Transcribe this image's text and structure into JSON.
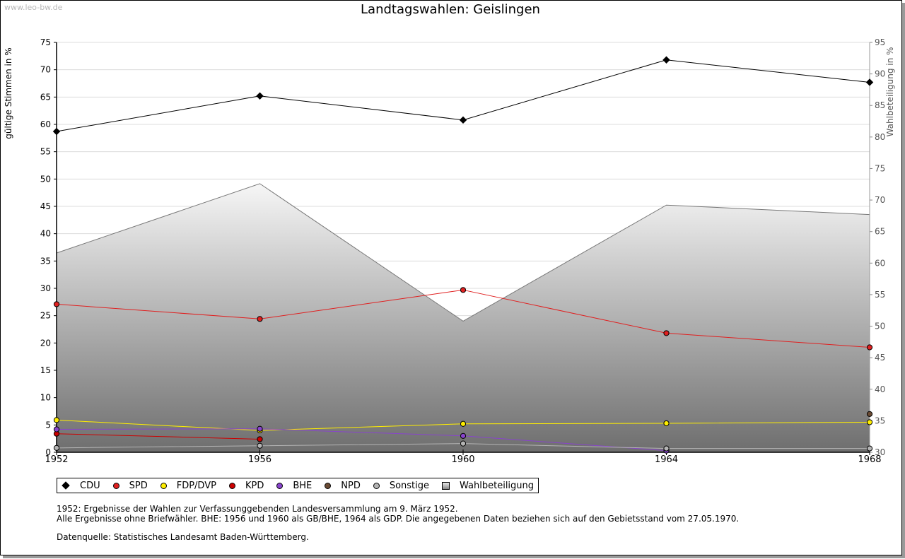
{
  "watermark": "www.leo-bw.de",
  "title": "Landtagswahlen: Geislingen",
  "chart_data": {
    "type": "line",
    "title": "Landtagswahlen: Geislingen",
    "x": [
      "1952",
      "1956",
      "1960",
      "1964",
      "1968"
    ],
    "ylabel": "gültige Stimmen in %",
    "ylim": [
      0,
      75
    ],
    "yticks": [
      0,
      5,
      10,
      15,
      20,
      25,
      30,
      35,
      40,
      45,
      50,
      55,
      60,
      65,
      70,
      75
    ],
    "y2label": "Wahlbeteiligung in %",
    "y2lim": [
      30,
      95
    ],
    "y2ticks": [
      30,
      35,
      40,
      45,
      50,
      55,
      60,
      65,
      70,
      75,
      80,
      85,
      90,
      95
    ],
    "grid": true,
    "legend_position": "bottom",
    "series": [
      {
        "name": "CDU",
        "color": "#000000",
        "marker": "diamond",
        "values": [
          58.7,
          65.2,
          60.8,
          71.8,
          67.7
        ]
      },
      {
        "name": "SPD",
        "color": "#e02020",
        "marker": "circle",
        "values": [
          27.1,
          24.4,
          29.7,
          21.8,
          19.2
        ]
      },
      {
        "name": "FDP/DVP",
        "color": "#ffee00",
        "marker": "circle",
        "values": [
          5.9,
          4.0,
          5.2,
          5.3,
          5.5
        ]
      },
      {
        "name": "KPD",
        "color": "#cc0000",
        "marker": "circle",
        "values": [
          3.4,
          2.4,
          null,
          null,
          null
        ]
      },
      {
        "name": "BHE",
        "color": "#8844cc",
        "marker": "circle",
        "values": [
          4.2,
          4.3,
          3.0,
          0.3,
          null
        ]
      },
      {
        "name": "NPD",
        "color": "#6b4b34",
        "marker": "circle",
        "values": [
          null,
          null,
          null,
          null,
          7.0
        ]
      },
      {
        "name": "Sonstige",
        "color": "#b4b4b4",
        "marker": "circle",
        "values": [
          0.8,
          1.2,
          1.6,
          0.7,
          0.7
        ]
      }
    ],
    "area_series": {
      "name": "Wahlbeteiligung",
      "axis": "y2",
      "values": [
        61.6,
        72.6,
        50.8,
        69.2,
        67.7
      ]
    }
  },
  "legend": [
    {
      "label": "CDU",
      "color": "#000000",
      "shape": "diamond"
    },
    {
      "label": "SPD",
      "color": "#e02020",
      "shape": "circle"
    },
    {
      "label": "FDP/DVP",
      "color": "#ffee00",
      "shape": "circle"
    },
    {
      "label": "KPD",
      "color": "#cc0000",
      "shape": "circle"
    },
    {
      "label": "BHE",
      "color": "#8844cc",
      "shape": "circle"
    },
    {
      "label": "NPD",
      "color": "#6b4b34",
      "shape": "circle"
    },
    {
      "label": "Sonstige",
      "color": "#b4b4b4",
      "shape": "circle"
    },
    {
      "label": "Wahlbeteiligung",
      "color": "#bbbbbb",
      "shape": "square"
    }
  ],
  "notes": {
    "line1": "1952: Ergebnisse der Wahlen zur Verfassunggebenden Landesversammlung am 9. März 1952.",
    "line2": "Alle Ergebnisse ohne Briefwähler. BHE: 1956 und 1960 als GB/BHE, 1964 als GDP. Die angegebenen Daten beziehen sich auf den Gebietsstand vom 27.05.1970.",
    "source": "Datenquelle: Statistisches Landesamt Baden-Württemberg."
  }
}
